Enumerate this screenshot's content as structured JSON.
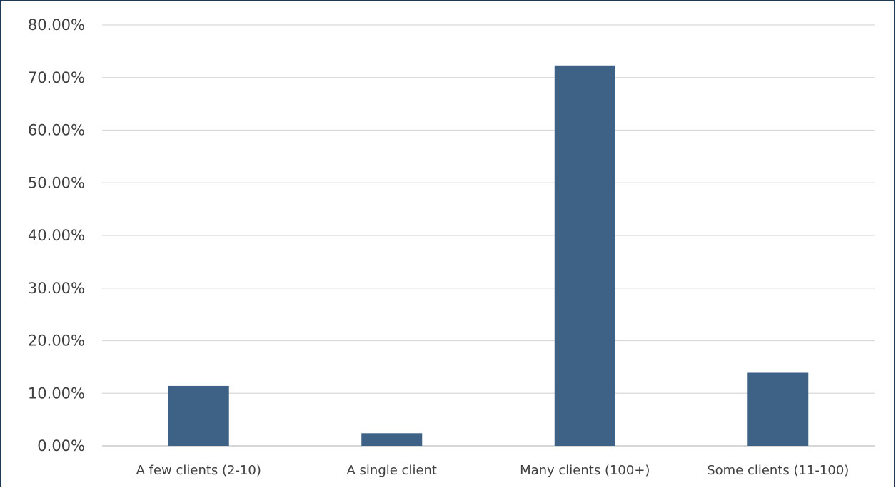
{
  "chart_data": {
    "type": "bar",
    "categories": [
      "A few clients (2-10)",
      "A single client",
      "Many clients (100+)",
      "Some clients (11-100)"
    ],
    "series": [
      {
        "values": [
          11.4,
          2.4,
          72.3,
          13.9
        ],
        "color": "#3e6285"
      }
    ],
    "ylim": [
      0,
      80
    ],
    "yticks": [
      0,
      10,
      20,
      30,
      40,
      50,
      60,
      70,
      80
    ],
    "ytick_labels": [
      "0.00%",
      "10.00%",
      "20.00%",
      "30.00%",
      "40.00%",
      "50.00%",
      "60.00%",
      "70.00%",
      "80.00%"
    ],
    "grid": true,
    "legend": "none",
    "title": "",
    "xlabel": "",
    "ylabel": ""
  }
}
